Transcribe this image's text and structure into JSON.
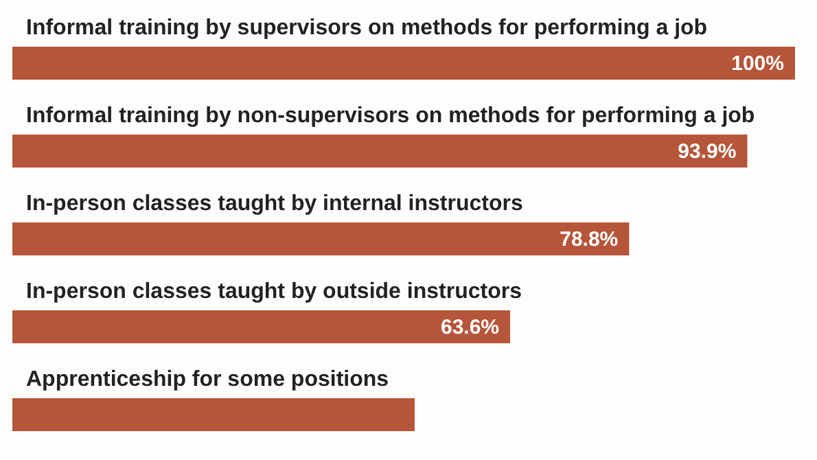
{
  "chart_data": {
    "type": "bar",
    "orientation": "horizontal",
    "categories": [
      "Informal training by supervisors on methods for performing a job",
      "Informal training by non-supervisors on methods for performing a job",
      "In-person classes taught by internal instructors",
      "In-person classes taught by outside instructors",
      "Apprenticeship for some positions"
    ],
    "values": [
      100,
      93.9,
      78.8,
      63.6,
      51.4
    ],
    "value_labels": [
      "100%",
      "93.9%",
      "78.8%",
      "63.6%",
      null
    ],
    "color": "#b5553a"
  }
}
